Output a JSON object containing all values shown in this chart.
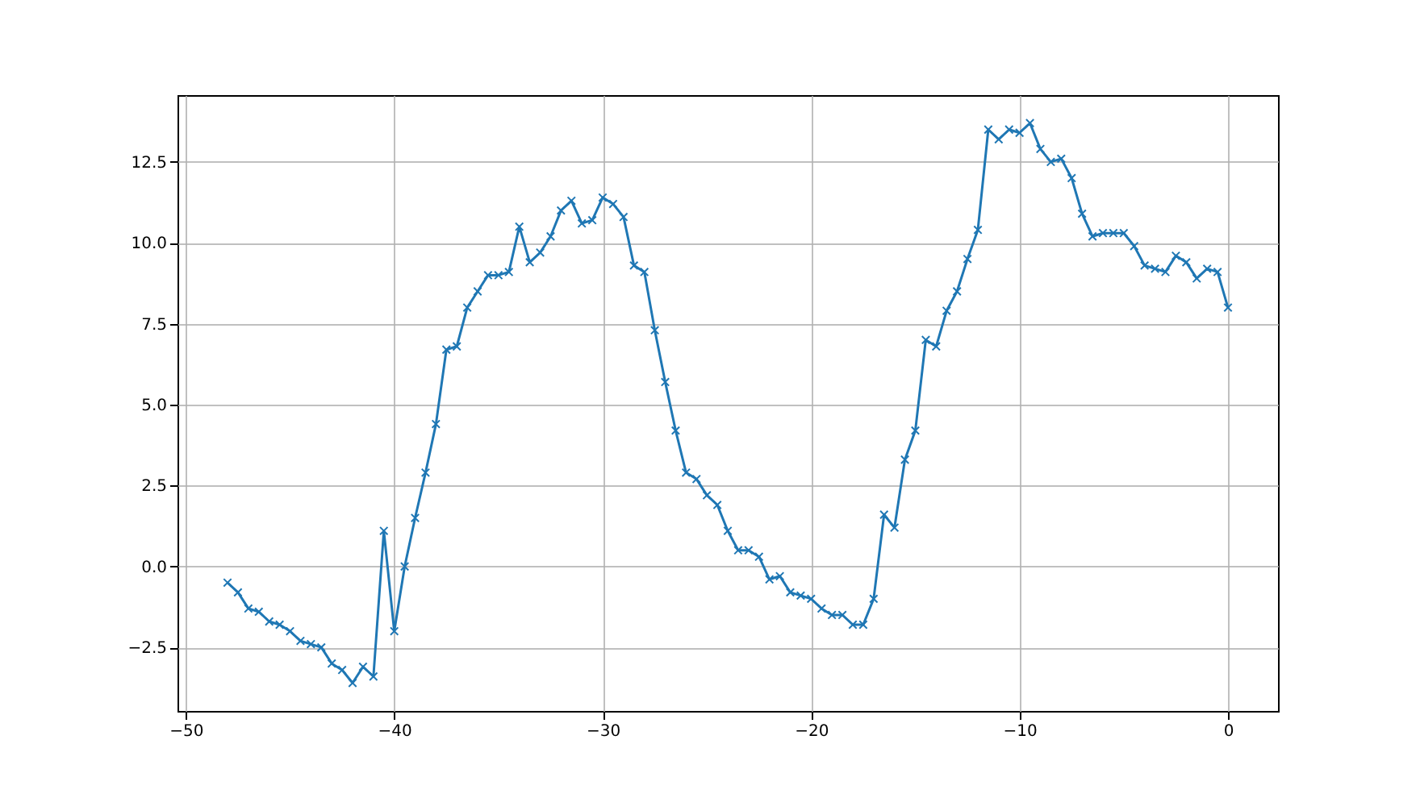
{
  "chart_data": {
    "type": "line",
    "marker": "cross",
    "line_style": "solid",
    "grid": true,
    "x": [
      -48,
      -47.5,
      -47,
      -46.5,
      -46,
      -45.5,
      -45,
      -44.5,
      -44,
      -43.5,
      -43,
      -42.5,
      -42,
      -41.5,
      -41,
      -40.5,
      -40,
      -39.5,
      -39,
      -38.5,
      -38,
      -37.5,
      -37,
      -36.5,
      -36,
      -35.5,
      -35,
      -34.5,
      -34,
      -33.5,
      -33,
      -32.5,
      -32,
      -31.5,
      -31,
      -30.5,
      -30,
      -29.5,
      -29,
      -28.5,
      -28,
      -27.5,
      -27,
      -26.5,
      -26,
      -25.5,
      -25,
      -24.5,
      -24,
      -23.5,
      -23,
      -22.5,
      -22,
      -21.5,
      -21,
      -20.5,
      -20,
      -19.5,
      -19,
      -18.5,
      -18,
      -17.5,
      -17,
      -16.5,
      -16,
      -15.5,
      -15,
      -14.5,
      -14,
      -13.5,
      -13,
      -12.5,
      -12,
      -11.5,
      -11,
      -10.5,
      -10,
      -9.5,
      -9,
      -8.5,
      -8,
      -7.5,
      -7,
      -6.5,
      -6,
      -5.5,
      -5,
      -4.5,
      -4,
      -3.5,
      -3,
      -2.5,
      -2,
      -1.5,
      -1,
      -0.5,
      0
    ],
    "series": [
      {
        "color": "#1f77b4",
        "values": [
          -0.5,
          -0.8,
          -1.3,
          -1.4,
          -1.7,
          -1.8,
          -2.0,
          -2.3,
          -2.4,
          -2.5,
          -3.0,
          -3.2,
          -3.6,
          -3.1,
          -3.4,
          1.1,
          -2.0,
          0.0,
          1.5,
          2.9,
          4.4,
          6.7,
          6.8,
          8.0,
          8.5,
          9.0,
          9.0,
          9.1,
          10.5,
          9.4,
          9.7,
          10.2,
          11.0,
          11.3,
          10.6,
          10.7,
          11.4,
          11.2,
          10.8,
          9.3,
          9.1,
          7.3,
          5.7,
          4.2,
          2.9,
          2.7,
          2.2,
          1.9,
          1.1,
          0.5,
          0.5,
          0.3,
          -0.4,
          -0.3,
          -0.8,
          -0.9,
          -1.0,
          -1.3,
          -1.5,
          -1.5,
          -1.8,
          -1.8,
          -1.0,
          1.6,
          1.2,
          3.3,
          4.2,
          7.0,
          6.8,
          7.9,
          8.5,
          9.5,
          10.4,
          13.5,
          13.2,
          13.5,
          13.4,
          13.7,
          12.9,
          12.5,
          12.6,
          12.0,
          10.9,
          10.2,
          10.3,
          10.3,
          10.3,
          9.9,
          9.3,
          9.2,
          9.1,
          9.6,
          9.4,
          8.9,
          9.2,
          9.1,
          8.0
        ]
      }
    ],
    "xlim": [
      -50.4,
      2.4
    ],
    "xticks": [
      {
        "value": -50,
        "label": "−50"
      },
      {
        "value": -40,
        "label": "−40"
      },
      {
        "value": -30,
        "label": "−30"
      },
      {
        "value": -20,
        "label": "−20"
      },
      {
        "value": -10,
        "label": "−10"
      },
      0
    ],
    "ylim": [
      -4.465,
      14.565
    ],
    "yticks": [
      {
        "value": -2.5,
        "label": "−2.5"
      },
      {
        "value": 0,
        "label": "0.0"
      },
      2.5,
      {
        "value": 5,
        "label": "5.0"
      },
      7.5,
      {
        "value": 10,
        "label": "10.0"
      },
      12.5
    ]
  }
}
